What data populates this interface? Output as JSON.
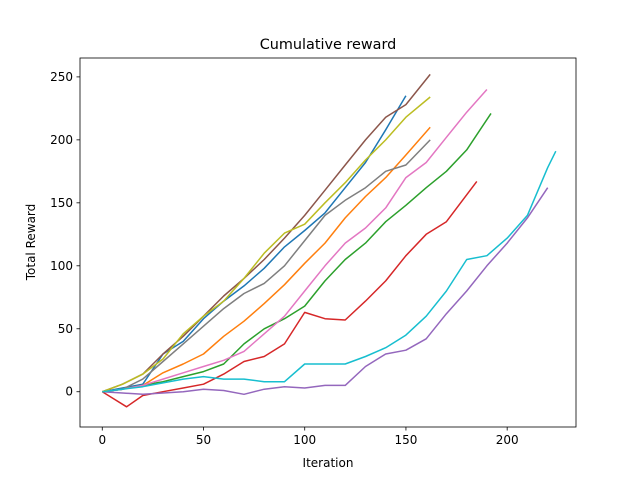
{
  "chart_data": {
    "type": "line",
    "title": "Cumulative reward",
    "xlabel": "Iteration",
    "ylabel": "Total Reward",
    "xlim": [
      -11,
      234
    ],
    "ylim": [
      -28,
      265
    ],
    "xticks": [
      0,
      50,
      100,
      150,
      200
    ],
    "yticks": [
      0,
      50,
      100,
      150,
      200,
      250
    ],
    "grid": false,
    "series": [
      {
        "color": "#1f77b4",
        "x": [
          0,
          10,
          20,
          30,
          40,
          50,
          60,
          70,
          80,
          90,
          100,
          110,
          120,
          130,
          140,
          150
        ],
        "y": [
          0,
          3,
          6,
          30,
          40,
          58,
          72,
          84,
          98,
          115,
          128,
          142,
          162,
          182,
          208,
          235
        ]
      },
      {
        "color": "#ff7f0e",
        "x": [
          0,
          10,
          20,
          30,
          40,
          50,
          60,
          70,
          80,
          90,
          100,
          110,
          120,
          130,
          140,
          150,
          162
        ],
        "y": [
          0,
          2,
          5,
          15,
          22,
          30,
          44,
          56,
          70,
          85,
          102,
          118,
          138,
          155,
          170,
          188,
          210
        ]
      },
      {
        "color": "#2ca02c",
        "x": [
          0,
          10,
          20,
          30,
          40,
          50,
          60,
          70,
          80,
          90,
          100,
          110,
          120,
          130,
          140,
          150,
          160,
          170,
          180,
          192
        ],
        "y": [
          0,
          2,
          5,
          8,
          12,
          16,
          22,
          38,
          50,
          58,
          68,
          88,
          105,
          118,
          135,
          148,
          162,
          175,
          192,
          221
        ]
      },
      {
        "color": "#d62728",
        "x": [
          0,
          5,
          12,
          20,
          30,
          40,
          50,
          60,
          70,
          80,
          90,
          100,
          110,
          120,
          130,
          140,
          150,
          160,
          170,
          185
        ],
        "y": [
          0,
          -5,
          -12,
          -3,
          0,
          3,
          6,
          14,
          24,
          28,
          38,
          63,
          58,
          57,
          72,
          88,
          108,
          125,
          135,
          167
        ]
      },
      {
        "color": "#9467bd",
        "x": [
          0,
          10,
          20,
          30,
          40,
          50,
          60,
          70,
          80,
          90,
          100,
          110,
          120,
          130,
          140,
          150,
          160,
          170,
          180,
          190,
          200,
          210,
          220
        ],
        "y": [
          0,
          -1,
          -2,
          -1,
          0,
          2,
          1,
          -2,
          2,
          4,
          3,
          5,
          5,
          20,
          30,
          33,
          42,
          62,
          80,
          100,
          118,
          138,
          162
        ]
      },
      {
        "color": "#8c564b",
        "x": [
          0,
          10,
          20,
          30,
          40,
          50,
          60,
          70,
          80,
          90,
          100,
          110,
          120,
          130,
          140,
          150,
          162
        ],
        "y": [
          0,
          6,
          14,
          30,
          44,
          60,
          76,
          90,
          105,
          122,
          140,
          160,
          180,
          200,
          218,
          228,
          252
        ]
      },
      {
        "color": "#e377c2",
        "x": [
          0,
          10,
          20,
          30,
          40,
          50,
          60,
          70,
          80,
          90,
          100,
          110,
          120,
          130,
          140,
          150,
          160,
          170,
          180,
          190
        ],
        "y": [
          0,
          2,
          5,
          10,
          15,
          20,
          25,
          32,
          46,
          60,
          80,
          100,
          118,
          130,
          146,
          170,
          182,
          202,
          222,
          240
        ]
      },
      {
        "color": "#7f7f7f",
        "x": [
          0,
          10,
          20,
          30,
          40,
          50,
          60,
          70,
          80,
          90,
          100,
          110,
          120,
          130,
          140,
          150,
          162
        ],
        "y": [
          0,
          2,
          10,
          24,
          38,
          52,
          66,
          78,
          86,
          100,
          120,
          140,
          152,
          162,
          175,
          180,
          200
        ]
      },
      {
        "color": "#bcbd22",
        "x": [
          0,
          10,
          20,
          30,
          40,
          50,
          60,
          70,
          80,
          90,
          100,
          110,
          120,
          130,
          140,
          150,
          162
        ],
        "y": [
          0,
          6,
          14,
          26,
          46,
          60,
          72,
          90,
          110,
          126,
          133,
          150,
          166,
          184,
          200,
          218,
          234
        ]
      },
      {
        "color": "#17becf",
        "x": [
          0,
          10,
          20,
          30,
          40,
          50,
          60,
          70,
          80,
          90,
          100,
          110,
          120,
          130,
          140,
          150,
          160,
          170,
          180,
          190,
          200,
          210,
          220,
          224
        ],
        "y": [
          0,
          2,
          4,
          7,
          10,
          12,
          10,
          10,
          8,
          8,
          22,
          22,
          22,
          28,
          35,
          45,
          60,
          80,
          105,
          108,
          122,
          140,
          178,
          191
        ]
      }
    ]
  }
}
